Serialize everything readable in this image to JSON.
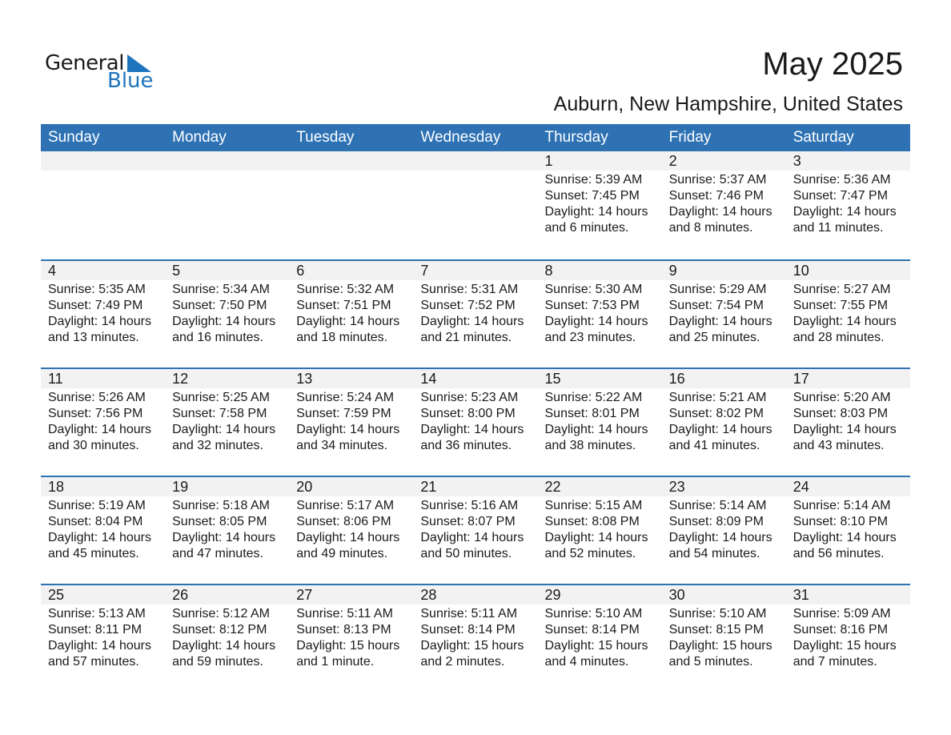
{
  "logo": {
    "text_general": "General",
    "text_blue": "Blue",
    "brand_color": "#1f75bd"
  },
  "title": "May 2025",
  "location": "Auburn, New Hampshire, United States",
  "header_color": "#2e72b4",
  "weekdays": [
    "Sunday",
    "Monday",
    "Tuesday",
    "Wednesday",
    "Thursday",
    "Friday",
    "Saturday"
  ],
  "weeks": [
    [
      {},
      {},
      {},
      {},
      {
        "day": "1",
        "sunrise": "Sunrise: 5:39 AM",
        "sunset": "Sunset: 7:45 PM",
        "daylight": "Daylight: 14 hours",
        "daylight2": "and 6 minutes."
      },
      {
        "day": "2",
        "sunrise": "Sunrise: 5:37 AM",
        "sunset": "Sunset: 7:46 PM",
        "daylight": "Daylight: 14 hours",
        "daylight2": "and 8 minutes."
      },
      {
        "day": "3",
        "sunrise": "Sunrise: 5:36 AM",
        "sunset": "Sunset: 7:47 PM",
        "daylight": "Daylight: 14 hours",
        "daylight2": "and 11 minutes."
      }
    ],
    [
      {
        "day": "4",
        "sunrise": "Sunrise: 5:35 AM",
        "sunset": "Sunset: 7:49 PM",
        "daylight": "Daylight: 14 hours",
        "daylight2": "and 13 minutes."
      },
      {
        "day": "5",
        "sunrise": "Sunrise: 5:34 AM",
        "sunset": "Sunset: 7:50 PM",
        "daylight": "Daylight: 14 hours",
        "daylight2": "and 16 minutes."
      },
      {
        "day": "6",
        "sunrise": "Sunrise: 5:32 AM",
        "sunset": "Sunset: 7:51 PM",
        "daylight": "Daylight: 14 hours",
        "daylight2": "and 18 minutes."
      },
      {
        "day": "7",
        "sunrise": "Sunrise: 5:31 AM",
        "sunset": "Sunset: 7:52 PM",
        "daylight": "Daylight: 14 hours",
        "daylight2": "and 21 minutes."
      },
      {
        "day": "8",
        "sunrise": "Sunrise: 5:30 AM",
        "sunset": "Sunset: 7:53 PM",
        "daylight": "Daylight: 14 hours",
        "daylight2": "and 23 minutes."
      },
      {
        "day": "9",
        "sunrise": "Sunrise: 5:29 AM",
        "sunset": "Sunset: 7:54 PM",
        "daylight": "Daylight: 14 hours",
        "daylight2": "and 25 minutes."
      },
      {
        "day": "10",
        "sunrise": "Sunrise: 5:27 AM",
        "sunset": "Sunset: 7:55 PM",
        "daylight": "Daylight: 14 hours",
        "daylight2": "and 28 minutes."
      }
    ],
    [
      {
        "day": "11",
        "sunrise": "Sunrise: 5:26 AM",
        "sunset": "Sunset: 7:56 PM",
        "daylight": "Daylight: 14 hours",
        "daylight2": "and 30 minutes."
      },
      {
        "day": "12",
        "sunrise": "Sunrise: 5:25 AM",
        "sunset": "Sunset: 7:58 PM",
        "daylight": "Daylight: 14 hours",
        "daylight2": "and 32 minutes."
      },
      {
        "day": "13",
        "sunrise": "Sunrise: 5:24 AM",
        "sunset": "Sunset: 7:59 PM",
        "daylight": "Daylight: 14 hours",
        "daylight2": "and 34 minutes."
      },
      {
        "day": "14",
        "sunrise": "Sunrise: 5:23 AM",
        "sunset": "Sunset: 8:00 PM",
        "daylight": "Daylight: 14 hours",
        "daylight2": "and 36 minutes."
      },
      {
        "day": "15",
        "sunrise": "Sunrise: 5:22 AM",
        "sunset": "Sunset: 8:01 PM",
        "daylight": "Daylight: 14 hours",
        "daylight2": "and 38 minutes."
      },
      {
        "day": "16",
        "sunrise": "Sunrise: 5:21 AM",
        "sunset": "Sunset: 8:02 PM",
        "daylight": "Daylight: 14 hours",
        "daylight2": "and 41 minutes."
      },
      {
        "day": "17",
        "sunrise": "Sunrise: 5:20 AM",
        "sunset": "Sunset: 8:03 PM",
        "daylight": "Daylight: 14 hours",
        "daylight2": "and 43 minutes."
      }
    ],
    [
      {
        "day": "18",
        "sunrise": "Sunrise: 5:19 AM",
        "sunset": "Sunset: 8:04 PM",
        "daylight": "Daylight: 14 hours",
        "daylight2": "and 45 minutes."
      },
      {
        "day": "19",
        "sunrise": "Sunrise: 5:18 AM",
        "sunset": "Sunset: 8:05 PM",
        "daylight": "Daylight: 14 hours",
        "daylight2": "and 47 minutes."
      },
      {
        "day": "20",
        "sunrise": "Sunrise: 5:17 AM",
        "sunset": "Sunset: 8:06 PM",
        "daylight": "Daylight: 14 hours",
        "daylight2": "and 49 minutes."
      },
      {
        "day": "21",
        "sunrise": "Sunrise: 5:16 AM",
        "sunset": "Sunset: 8:07 PM",
        "daylight": "Daylight: 14 hours",
        "daylight2": "and 50 minutes."
      },
      {
        "day": "22",
        "sunrise": "Sunrise: 5:15 AM",
        "sunset": "Sunset: 8:08 PM",
        "daylight": "Daylight: 14 hours",
        "daylight2": "and 52 minutes."
      },
      {
        "day": "23",
        "sunrise": "Sunrise: 5:14 AM",
        "sunset": "Sunset: 8:09 PM",
        "daylight": "Daylight: 14 hours",
        "daylight2": "and 54 minutes."
      },
      {
        "day": "24",
        "sunrise": "Sunrise: 5:14 AM",
        "sunset": "Sunset: 8:10 PM",
        "daylight": "Daylight: 14 hours",
        "daylight2": "and 56 minutes."
      }
    ],
    [
      {
        "day": "25",
        "sunrise": "Sunrise: 5:13 AM",
        "sunset": "Sunset: 8:11 PM",
        "daylight": "Daylight: 14 hours",
        "daylight2": "and 57 minutes."
      },
      {
        "day": "26",
        "sunrise": "Sunrise: 5:12 AM",
        "sunset": "Sunset: 8:12 PM",
        "daylight": "Daylight: 14 hours",
        "daylight2": "and 59 minutes."
      },
      {
        "day": "27",
        "sunrise": "Sunrise: 5:11 AM",
        "sunset": "Sunset: 8:13 PM",
        "daylight": "Daylight: 15 hours",
        "daylight2": "and 1 minute."
      },
      {
        "day": "28",
        "sunrise": "Sunrise: 5:11 AM",
        "sunset": "Sunset: 8:14 PM",
        "daylight": "Daylight: 15 hours",
        "daylight2": "and 2 minutes."
      },
      {
        "day": "29",
        "sunrise": "Sunrise: 5:10 AM",
        "sunset": "Sunset: 8:14 PM",
        "daylight": "Daylight: 15 hours",
        "daylight2": "and 4 minutes."
      },
      {
        "day": "30",
        "sunrise": "Sunrise: 5:10 AM",
        "sunset": "Sunset: 8:15 PM",
        "daylight": "Daylight: 15 hours",
        "daylight2": "and 5 minutes."
      },
      {
        "day": "31",
        "sunrise": "Sunrise: 5:09 AM",
        "sunset": "Sunset: 8:16 PM",
        "daylight": "Daylight: 15 hours",
        "daylight2": "and 7 minutes."
      }
    ]
  ]
}
